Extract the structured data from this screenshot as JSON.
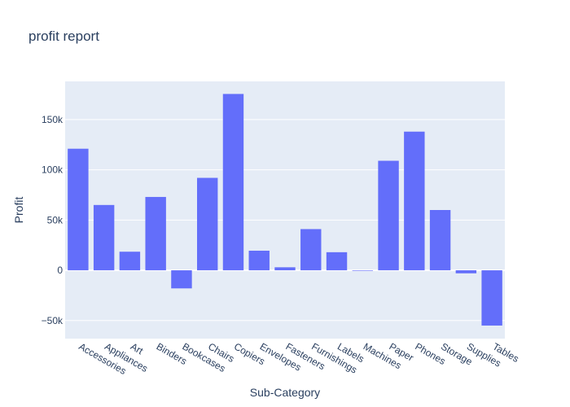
{
  "chart_data": {
    "type": "bar",
    "title": "profit report",
    "xlabel": "Sub-Category",
    "ylabel": "Profit",
    "categories": [
      "Accessories",
      "Appliances",
      "Art",
      "Binders",
      "Bookcases",
      "Chairs",
      "Copiers",
      "Envelopes",
      "Fasteners",
      "Furnishings",
      "Labels",
      "Machines",
      "Paper",
      "Phones",
      "Storage",
      "Supplies",
      "Tables"
    ],
    "values": [
      121000,
      65000,
      18500,
      73000,
      -18000,
      92000,
      175500,
      19500,
      3000,
      41000,
      18000,
      -500,
      109000,
      138000,
      60000,
      -3000,
      -55000
    ],
    "ylim": [
      -68000,
      188000
    ],
    "y_ticks": [
      -50000,
      0,
      50000,
      100000,
      150000
    ],
    "y_tick_labels": [
      "−50k",
      "0",
      "50k",
      "100k",
      "150k"
    ],
    "grid": true,
    "colors": {
      "bar": "#636efa",
      "plot_bg": "#e5ecf6",
      "grid": "#ffffff",
      "text": "#2a3f5f"
    }
  }
}
